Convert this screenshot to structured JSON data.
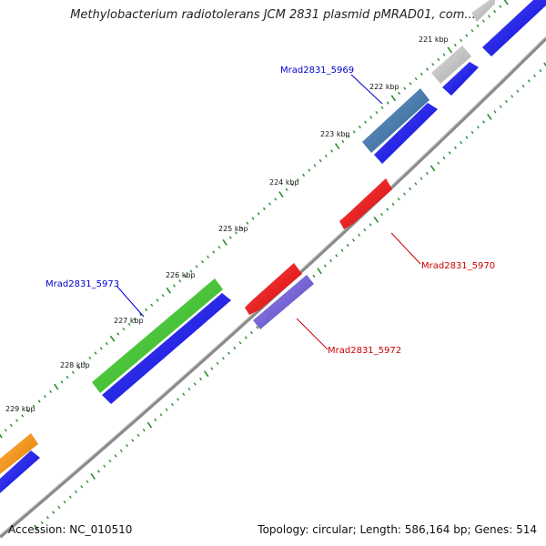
{
  "title": "Methylobacterium radiotolerans JCM 2831 plasmid pMRAD01, com...",
  "footer": {
    "accession": "Accession: NC_010510",
    "summary": "Topology: circular; Length: 586,164 bp; Genes: 514"
  },
  "ticks": [
    "221 kbp",
    "222 kbp",
    "223 kbp",
    "224 kbp",
    "225 kbp",
    "226 kbp",
    "227 kbp",
    "228 kbp",
    "229 kbp"
  ],
  "gene_labels": {
    "g5969": "Mrad2831_5969",
    "g5973": "Mrad2831_5973",
    "g5970": "Mrad2831_5970",
    "g5972": "Mrad2831_5972"
  },
  "colors": {
    "forward_cds": "#1010e8",
    "reverse_cds": "#ee1010",
    "gene_grey": "#c8c8c8",
    "gene_steel": "#4a78a8",
    "gene_green": "#44cc33",
    "gene_orange": "#ff9910",
    "gene_purple": "#7766dd",
    "label_blue": "#0000cc",
    "label_red": "#cc0000",
    "tick_green": "#2a8a2a",
    "backbone": "#8a8a8a"
  }
}
